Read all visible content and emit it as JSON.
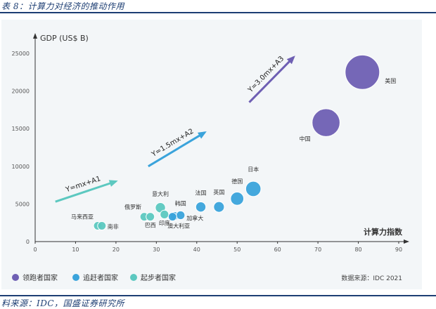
{
  "header": {
    "caption": "表 8：计算力对经济的推动作用"
  },
  "footer": {
    "caption": "料来源：IDC，国盛证券研究所"
  },
  "colors": {
    "leader": "#6e5fb3",
    "chaser": "#3aa3db",
    "starter": "#5cc8c0",
    "arrow_teal": "#5cc8c0",
    "arrow_blue": "#3aa3db",
    "arrow_purple": "#6e5fb3"
  },
  "chart_data": {
    "type": "scatter",
    "ylabel": "GDP (US$ B)",
    "xlabel": "计算力指数",
    "xlim": [
      0,
      90
    ],
    "ylim": [
      0,
      25000
    ],
    "xticks": [
      "0",
      "10",
      "20",
      "30",
      "40",
      "50",
      "60",
      "70",
      "80",
      "90"
    ],
    "yticks": [
      "0",
      "5000",
      "10000",
      "15000",
      "20000",
      "25000"
    ],
    "source": "数据来源：IDC 2021",
    "legend": [
      {
        "label": "领跑者国家",
        "group": "leader"
      },
      {
        "label": "追赶者国家",
        "group": "chaser"
      },
      {
        "label": "起步者国家",
        "group": "starter"
      }
    ],
    "points": [
      {
        "label": "马来西亚",
        "x": 15.5,
        "y": 2100,
        "size": 0.1,
        "group": "starter"
      },
      {
        "label": "南非",
        "x": 16.5,
        "y": 2100,
        "size": 0.1,
        "group": "starter"
      },
      {
        "label": "俄罗斯",
        "x": 27.0,
        "y": 3300,
        "size": 0.14,
        "group": "starter"
      },
      {
        "label": "巴西",
        "x": 28.5,
        "y": 3300,
        "size": 0.14,
        "group": "starter"
      },
      {
        "label": "意大利",
        "x": 31.0,
        "y": 4500,
        "size": 0.2,
        "group": "starter"
      },
      {
        "label": "印度",
        "x": 32.0,
        "y": 3600,
        "size": 0.17,
        "group": "starter"
      },
      {
        "label": "澳大利亚",
        "x": 34.5,
        "y": 3400,
        "size": 0.16,
        "group": "chaser"
      },
      {
        "label": "韩国",
        "x": 36.0,
        "y": 3500,
        "size": 0.17,
        "group": "chaser"
      },
      {
        "label": "加拿大",
        "x": 34.0,
        "y": 3300,
        "size": 0.14,
        "group": "chaser"
      },
      {
        "label": "法国",
        "x": 41.0,
        "y": 4600,
        "size": 0.2,
        "group": "chaser"
      },
      {
        "label": "英国",
        "x": 45.5,
        "y": 4600,
        "size": 0.21,
        "group": "chaser"
      },
      {
        "label": "德国",
        "x": 50.0,
        "y": 5700,
        "size": 0.26,
        "group": "chaser"
      },
      {
        "label": "日本",
        "x": 54.0,
        "y": 7000,
        "size": 0.3,
        "group": "chaser"
      },
      {
        "label": "中国",
        "x": 72.0,
        "y": 15800,
        "size": 0.55,
        "group": "leader"
      },
      {
        "label": "美国",
        "x": 81.0,
        "y": 22500,
        "size": 0.68,
        "group": "leader"
      }
    ],
    "annotations": [
      {
        "text": "Y=mx+A1",
        "x1": 5,
        "y1": 5300,
        "x2": 20,
        "y2": 8000,
        "group": "starter"
      },
      {
        "text": "Y=1.5mx+A2",
        "x1": 28,
        "y1": 10000,
        "x2": 42,
        "y2": 14500,
        "group": "chaser"
      },
      {
        "text": "Y=3.0mx+A3",
        "x1": 53,
        "y1": 18500,
        "x2": 64,
        "y2": 24500,
        "group": "leader"
      }
    ]
  }
}
